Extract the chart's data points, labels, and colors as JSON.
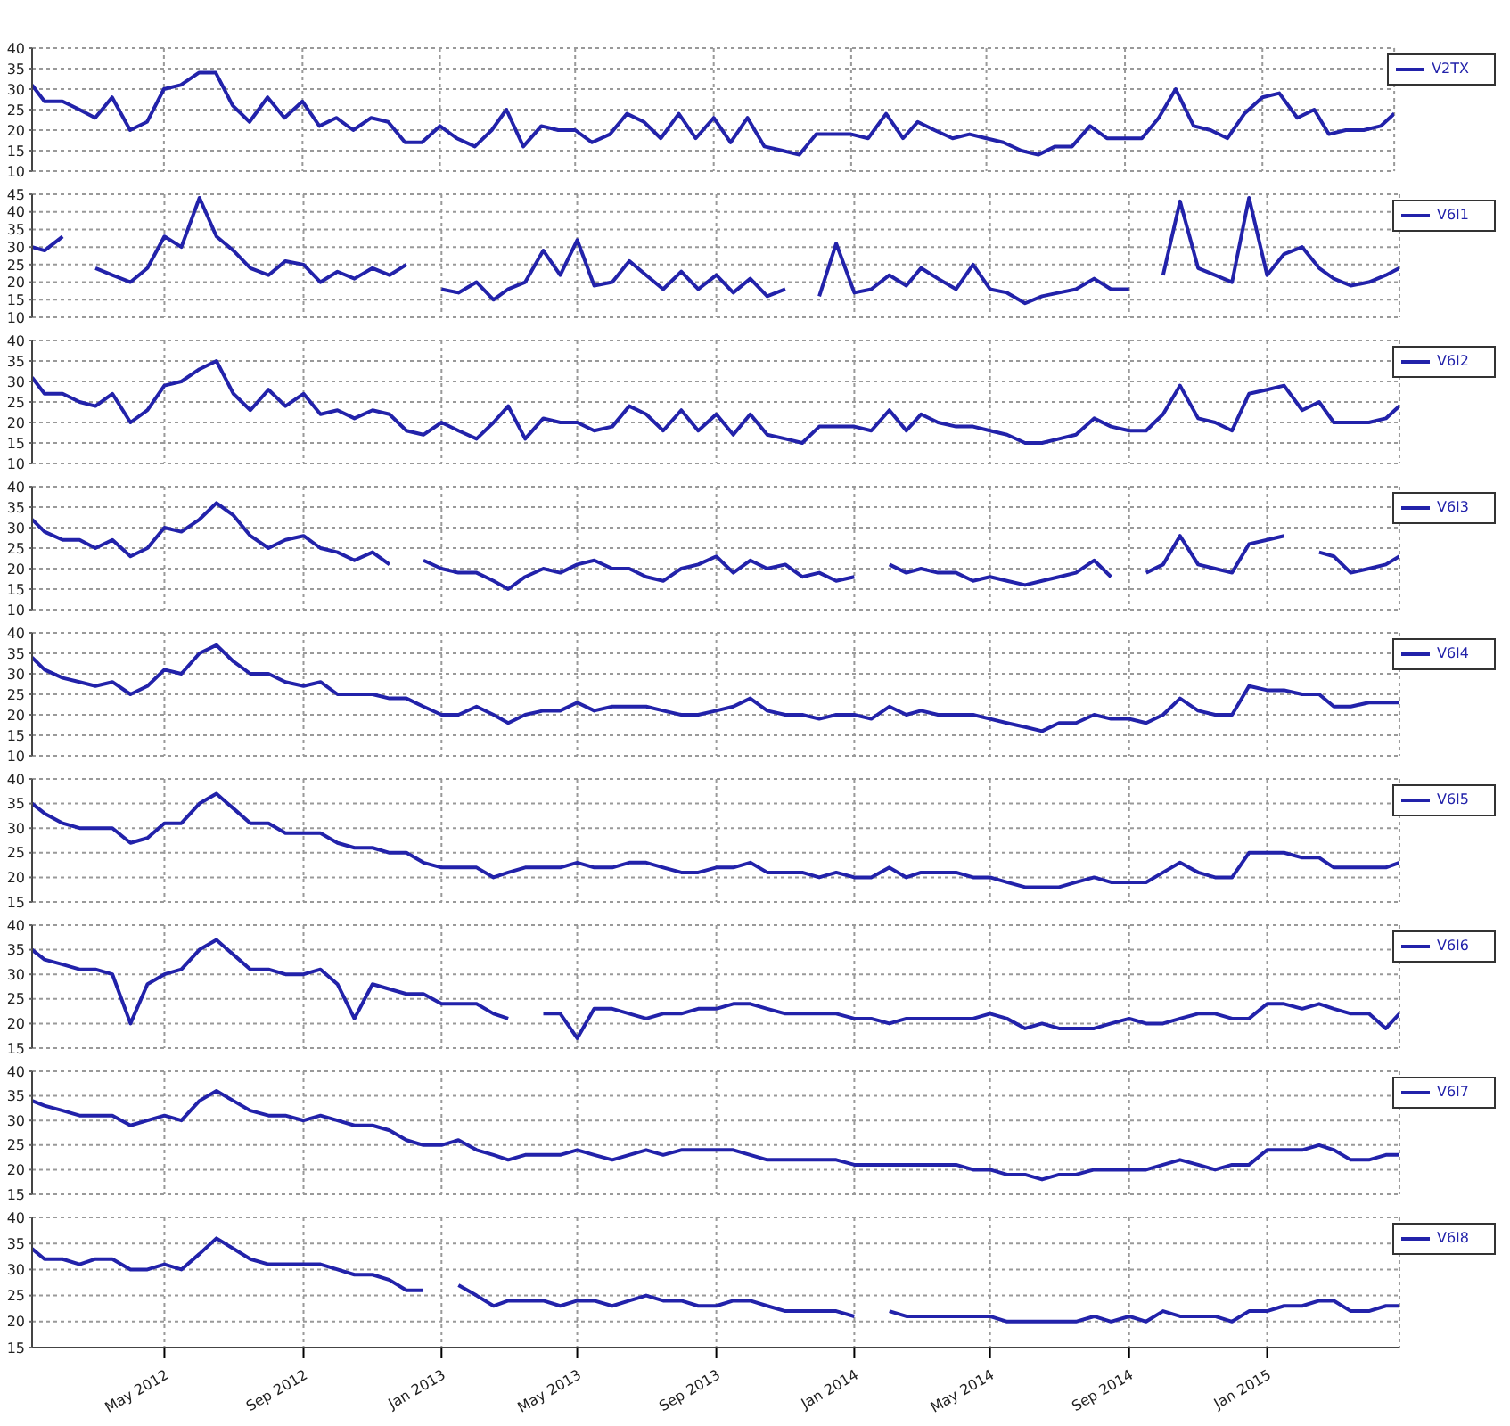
{
  "chart_data": [
    {
      "type": "line",
      "legend": "top right",
      "grid": true,
      "tick_labels": "y",
      "xlim": [
        "2012-01-05",
        "2015-04-28"
      ],
      "xticks": [
        {
          "value": "2012-05-01",
          "label": null
        },
        {
          "value": "2012-09-01",
          "label": null
        },
        {
          "value": "2013-01-01",
          "label": null
        },
        {
          "value": "2013-05-01",
          "label": null
        },
        {
          "value": "2013-09-01",
          "label": null
        },
        {
          "value": "2014-01-01",
          "label": null
        },
        {
          "value": "2014-05-01",
          "label": null
        },
        {
          "value": "2014-09-01",
          "label": null
        },
        {
          "value": "2015-01-01",
          "label": null
        }
      ],
      "ylim": [
        10,
        40
      ],
      "yticks": [
        10,
        15,
        20,
        25,
        30,
        35,
        40
      ],
      "x": [
        "2012-01-05",
        "2012-01-16",
        "2012-02-01",
        "2012-02-16",
        "2012-03-01",
        "2012-03-16",
        "2012-04-01",
        "2012-04-16",
        "2012-05-01",
        "2012-05-16",
        "2012-06-01",
        "2012-06-16",
        "2012-07-01",
        "2012-07-16",
        "2012-08-01",
        "2012-08-16",
        "2012-09-01",
        "2012-09-16",
        "2012-10-01",
        "2012-10-16",
        "2012-11-01",
        "2012-11-16",
        "2012-12-01",
        "2012-12-16",
        "2013-01-01",
        "2013-01-16",
        "2013-02-01",
        "2013-02-16",
        "2013-03-01",
        "2013-03-16",
        "2013-04-01",
        "2013-04-16",
        "2013-05-01",
        "2013-05-16",
        "2013-06-01",
        "2013-06-16",
        "2013-07-01",
        "2013-07-16",
        "2013-08-01",
        "2013-08-16",
        "2013-09-01",
        "2013-09-16",
        "2013-10-01",
        "2013-10-16",
        "2013-11-01",
        "2013-11-16",
        "2013-12-01",
        "2013-12-16",
        "2014-01-01",
        "2014-01-16",
        "2014-02-01",
        "2014-02-16",
        "2014-03-01",
        "2014-03-16",
        "2014-04-01",
        "2014-04-16",
        "2014-05-01",
        "2014-05-16",
        "2014-06-01",
        "2014-06-16",
        "2014-07-01",
        "2014-07-16",
        "2014-08-01",
        "2014-08-16",
        "2014-09-01",
        "2014-09-16",
        "2014-10-01",
        "2014-10-16",
        "2014-11-01",
        "2014-11-16",
        "2014-12-01",
        "2014-12-16",
        "2015-01-01",
        "2015-01-16",
        "2015-02-01",
        "2015-02-16",
        "2015-03-01",
        "2015-03-16",
        "2015-04-01",
        "2015-04-16",
        "2015-04-28"
      ],
      "series": [
        {
          "name": "V2TX",
          "color": "#2222aa",
          "values": [
            31,
            27,
            27,
            25,
            23,
            28,
            20,
            22,
            30,
            31,
            34,
            34,
            26,
            22,
            28,
            23,
            27,
            21,
            23,
            20,
            23,
            22,
            17,
            17,
            21,
            18,
            16,
            20,
            25,
            16,
            21,
            20,
            20,
            17,
            19,
            24,
            22,
            18,
            24,
            18,
            23,
            17,
            23,
            16,
            15,
            14,
            19,
            19,
            19,
            18,
            24,
            18,
            22,
            20,
            18,
            19,
            18,
            17,
            15,
            14,
            16,
            16,
            21,
            18,
            18,
            18,
            23,
            30,
            21,
            20,
            18,
            24,
            28,
            29,
            23,
            25,
            19,
            20,
            20,
            21,
            24
          ]
        }
      ]
    },
    {
      "type": "line",
      "legend": "top right",
      "grid": true,
      "tick_labels": "y",
      "xlim": [
        "2012-01-05",
        "2015-04-28"
      ],
      "xticks": [
        {
          "value": "2012-05-01",
          "label": null
        },
        {
          "value": "2012-09-01",
          "label": null
        },
        {
          "value": "2013-01-01",
          "label": null
        },
        {
          "value": "2013-05-01",
          "label": null
        },
        {
          "value": "2013-09-01",
          "label": null
        },
        {
          "value": "2014-01-01",
          "label": null
        },
        {
          "value": "2014-05-01",
          "label": null
        },
        {
          "value": "2014-09-01",
          "label": null
        },
        {
          "value": "2015-01-01",
          "label": null
        }
      ],
      "ylim": [
        10,
        45
      ],
      "yticks": [
        10,
        15,
        20,
        25,
        30,
        35,
        40,
        45
      ],
      "x": [
        "2012-01-05",
        "2012-01-16",
        "2012-02-01",
        "2012-02-16",
        "2012-03-01",
        "2012-03-16",
        "2012-04-01",
        "2012-04-16",
        "2012-05-01",
        "2012-05-16",
        "2012-06-01",
        "2012-06-16",
        "2012-07-01",
        "2012-07-16",
        "2012-08-01",
        "2012-08-16",
        "2012-09-01",
        "2012-09-16",
        "2012-10-01",
        "2012-10-16",
        "2012-11-01",
        "2012-11-16",
        "2012-12-01",
        "2012-12-16",
        "2013-01-01",
        "2013-01-16",
        "2013-02-01",
        "2013-02-16",
        "2013-03-01",
        "2013-03-16",
        "2013-04-01",
        "2013-04-16",
        "2013-05-01",
        "2013-05-16",
        "2013-06-01",
        "2013-06-16",
        "2013-07-01",
        "2013-07-16",
        "2013-08-01",
        "2013-08-16",
        "2013-09-01",
        "2013-09-16",
        "2013-10-01",
        "2013-10-16",
        "2013-11-01",
        "2013-11-16",
        "2013-12-01",
        "2013-12-16",
        "2014-01-01",
        "2014-01-16",
        "2014-02-01",
        "2014-02-16",
        "2014-03-01",
        "2014-03-16",
        "2014-04-01",
        "2014-04-16",
        "2014-05-01",
        "2014-05-16",
        "2014-06-01",
        "2014-06-16",
        "2014-07-01",
        "2014-07-16",
        "2014-08-01",
        "2014-08-16",
        "2014-09-01",
        "2014-09-16",
        "2014-10-01",
        "2014-10-16",
        "2014-11-01",
        "2014-11-16",
        "2014-12-01",
        "2014-12-16",
        "2015-01-01",
        "2015-01-16",
        "2015-02-01",
        "2015-02-16",
        "2015-03-01",
        "2015-03-16",
        "2015-04-01",
        "2015-04-16",
        "2015-04-28"
      ],
      "series": [
        {
          "name": "V6I1",
          "color": "#2222aa",
          "values": [
            30,
            29,
            33,
            null,
            24,
            22,
            20,
            24,
            33,
            30,
            44,
            33,
            29,
            24,
            22,
            26,
            25,
            20,
            23,
            21,
            24,
            22,
            25,
            null,
            18,
            17,
            20,
            15,
            18,
            20,
            29,
            22,
            32,
            19,
            20,
            26,
            22,
            18,
            23,
            18,
            22,
            17,
            21,
            16,
            18,
            null,
            16,
            31,
            17,
            18,
            22,
            19,
            24,
            21,
            18,
            25,
            18,
            17,
            14,
            16,
            17,
            18,
            21,
            18,
            18,
            null,
            22,
            43,
            24,
            22,
            20,
            44,
            22,
            28,
            30,
            24,
            21,
            19,
            20,
            22,
            24
          ]
        }
      ]
    },
    {
      "type": "line",
      "legend": "top right",
      "grid": true,
      "tick_labels": "y",
      "xlim": [
        "2012-01-05",
        "2015-04-28"
      ],
      "xticks": [
        {
          "value": "2012-05-01",
          "label": null
        },
        {
          "value": "2012-09-01",
          "label": null
        },
        {
          "value": "2013-01-01",
          "label": null
        },
        {
          "value": "2013-05-01",
          "label": null
        },
        {
          "value": "2013-09-01",
          "label": null
        },
        {
          "value": "2014-01-01",
          "label": null
        },
        {
          "value": "2014-05-01",
          "label": null
        },
        {
          "value": "2014-09-01",
          "label": null
        },
        {
          "value": "2015-01-01",
          "label": null
        }
      ],
      "ylim": [
        10,
        40
      ],
      "yticks": [
        10,
        15,
        20,
        25,
        30,
        35,
        40
      ],
      "x": [
        "2012-01-05",
        "2012-01-16",
        "2012-02-01",
        "2012-02-16",
        "2012-03-01",
        "2012-03-16",
        "2012-04-01",
        "2012-04-16",
        "2012-05-01",
        "2012-05-16",
        "2012-06-01",
        "2012-06-16",
        "2012-07-01",
        "2012-07-16",
        "2012-08-01",
        "2012-08-16",
        "2012-09-01",
        "2012-09-16",
        "2012-10-01",
        "2012-10-16",
        "2012-11-01",
        "2012-11-16",
        "2012-12-01",
        "2012-12-16",
        "2013-01-01",
        "2013-01-16",
        "2013-02-01",
        "2013-02-16",
        "2013-03-01",
        "2013-03-16",
        "2013-04-01",
        "2013-04-16",
        "2013-05-01",
        "2013-05-16",
        "2013-06-01",
        "2013-06-16",
        "2013-07-01",
        "2013-07-16",
        "2013-08-01",
        "2013-08-16",
        "2013-09-01",
        "2013-09-16",
        "2013-10-01",
        "2013-10-16",
        "2013-11-01",
        "2013-11-16",
        "2013-12-01",
        "2013-12-16",
        "2014-01-01",
        "2014-01-16",
        "2014-02-01",
        "2014-02-16",
        "2014-03-01",
        "2014-03-16",
        "2014-04-01",
        "2014-04-16",
        "2014-05-01",
        "2014-05-16",
        "2014-06-01",
        "2014-06-16",
        "2014-07-01",
        "2014-07-16",
        "2014-08-01",
        "2014-08-16",
        "2014-09-01",
        "2014-09-16",
        "2014-10-01",
        "2014-10-16",
        "2014-11-01",
        "2014-11-16",
        "2014-12-01",
        "2014-12-16",
        "2015-01-01",
        "2015-01-16",
        "2015-02-01",
        "2015-02-16",
        "2015-03-01",
        "2015-03-16",
        "2015-04-01",
        "2015-04-16",
        "2015-04-28"
      ],
      "series": [
        {
          "name": "V6I2",
          "color": "#2222aa",
          "values": [
            31,
            27,
            27,
            25,
            24,
            27,
            20,
            23,
            29,
            30,
            33,
            35,
            27,
            23,
            28,
            24,
            27,
            22,
            23,
            21,
            23,
            22,
            18,
            17,
            20,
            18,
            16,
            20,
            24,
            16,
            21,
            20,
            20,
            18,
            19,
            24,
            22,
            18,
            23,
            18,
            22,
            17,
            22,
            17,
            16,
            15,
            19,
            19,
            19,
            18,
            23,
            18,
            22,
            20,
            19,
            19,
            18,
            17,
            15,
            15,
            16,
            17,
            21,
            19,
            18,
            18,
            22,
            29,
            21,
            20,
            18,
            27,
            28,
            29,
            23,
            25,
            20,
            20,
            20,
            21,
            24
          ]
        }
      ]
    },
    {
      "type": "line",
      "legend": "top right",
      "grid": true,
      "tick_labels": "y",
      "xlim": [
        "2012-01-05",
        "2015-04-28"
      ],
      "xticks": [
        {
          "value": "2012-05-01",
          "label": null
        },
        {
          "value": "2012-09-01",
          "label": null
        },
        {
          "value": "2013-01-01",
          "label": null
        },
        {
          "value": "2013-05-01",
          "label": null
        },
        {
          "value": "2013-09-01",
          "label": null
        },
        {
          "value": "2014-01-01",
          "label": null
        },
        {
          "value": "2014-05-01",
          "label": null
        },
        {
          "value": "2014-09-01",
          "label": null
        },
        {
          "value": "2015-01-01",
          "label": null
        }
      ],
      "ylim": [
        10,
        40
      ],
      "yticks": [
        10,
        15,
        20,
        25,
        30,
        35,
        40
      ],
      "x": [
        "2012-01-05",
        "2012-01-16",
        "2012-02-01",
        "2012-02-16",
        "2012-03-01",
        "2012-03-16",
        "2012-04-01",
        "2012-04-16",
        "2012-05-01",
        "2012-05-16",
        "2012-06-01",
        "2012-06-16",
        "2012-07-01",
        "2012-07-16",
        "2012-08-01",
        "2012-08-16",
        "2012-09-01",
        "2012-09-16",
        "2012-10-01",
        "2012-10-16",
        "2012-11-01",
        "2012-11-16",
        "2012-12-01",
        "2012-12-16",
        "2013-01-01",
        "2013-01-16",
        "2013-02-01",
        "2013-02-16",
        "2013-03-01",
        "2013-03-16",
        "2013-04-01",
        "2013-04-16",
        "2013-05-01",
        "2013-05-16",
        "2013-06-01",
        "2013-06-16",
        "2013-07-01",
        "2013-07-16",
        "2013-08-01",
        "2013-08-16",
        "2013-09-01",
        "2013-09-16",
        "2013-10-01",
        "2013-10-16",
        "2013-11-01",
        "2013-11-16",
        "2013-12-01",
        "2013-12-16",
        "2014-01-01",
        "2014-01-16",
        "2014-02-01",
        "2014-02-16",
        "2014-03-01",
        "2014-03-16",
        "2014-04-01",
        "2014-04-16",
        "2014-05-01",
        "2014-05-16",
        "2014-06-01",
        "2014-06-16",
        "2014-07-01",
        "2014-07-16",
        "2014-08-01",
        "2014-08-16",
        "2014-09-01",
        "2014-09-16",
        "2014-10-01",
        "2014-10-16",
        "2014-11-01",
        "2014-11-16",
        "2014-12-01",
        "2014-12-16",
        "2015-01-01",
        "2015-01-16",
        "2015-02-01",
        "2015-02-16",
        "2015-03-01",
        "2015-03-16",
        "2015-04-01",
        "2015-04-16",
        "2015-04-28"
      ],
      "series": [
        {
          "name": "V6I3",
          "color": "#2222aa",
          "values": [
            32,
            29,
            27,
            27,
            25,
            27,
            23,
            25,
            30,
            29,
            32,
            36,
            33,
            28,
            25,
            27,
            28,
            25,
            24,
            22,
            24,
            21,
            null,
            22,
            20,
            19,
            19,
            17,
            15,
            18,
            20,
            19,
            21,
            22,
            20,
            20,
            18,
            17,
            20,
            21,
            23,
            19,
            22,
            20,
            21,
            18,
            19,
            17,
            18,
            null,
            21,
            19,
            20,
            19,
            19,
            17,
            18,
            17,
            16,
            17,
            18,
            19,
            22,
            18,
            null,
            19,
            21,
            28,
            21,
            20,
            19,
            26,
            27,
            28,
            null,
            24,
            23,
            19,
            20,
            21,
            23
          ]
        }
      ]
    },
    {
      "type": "line",
      "legend": "top right",
      "grid": true,
      "tick_labels": "y",
      "xlim": [
        "2012-01-05",
        "2015-04-28"
      ],
      "xticks": [
        {
          "value": "2012-05-01",
          "label": null
        },
        {
          "value": "2012-09-01",
          "label": null
        },
        {
          "value": "2013-01-01",
          "label": null
        },
        {
          "value": "2013-05-01",
          "label": null
        },
        {
          "value": "2013-09-01",
          "label": null
        },
        {
          "value": "2014-01-01",
          "label": null
        },
        {
          "value": "2014-05-01",
          "label": null
        },
        {
          "value": "2014-09-01",
          "label": null
        },
        {
          "value": "2015-01-01",
          "label": null
        }
      ],
      "ylim": [
        10,
        40
      ],
      "yticks": [
        10,
        15,
        20,
        25,
        30,
        35,
        40
      ],
      "x": [
        "2012-01-05",
        "2012-01-16",
        "2012-02-01",
        "2012-02-16",
        "2012-03-01",
        "2012-03-16",
        "2012-04-01",
        "2012-04-16",
        "2012-05-01",
        "2012-05-16",
        "2012-06-01",
        "2012-06-16",
        "2012-07-01",
        "2012-07-16",
        "2012-08-01",
        "2012-08-16",
        "2012-09-01",
        "2012-09-16",
        "2012-10-01",
        "2012-10-16",
        "2012-11-01",
        "2012-11-16",
        "2012-12-01",
        "2012-12-16",
        "2013-01-01",
        "2013-01-16",
        "2013-02-01",
        "2013-02-16",
        "2013-03-01",
        "2013-03-16",
        "2013-04-01",
        "2013-04-16",
        "2013-05-01",
        "2013-05-16",
        "2013-06-01",
        "2013-06-16",
        "2013-07-01",
        "2013-07-16",
        "2013-08-01",
        "2013-08-16",
        "2013-09-01",
        "2013-09-16",
        "2013-10-01",
        "2013-10-16",
        "2013-11-01",
        "2013-11-16",
        "2013-12-01",
        "2013-12-16",
        "2014-01-01",
        "2014-01-16",
        "2014-02-01",
        "2014-02-16",
        "2014-03-01",
        "2014-03-16",
        "2014-04-01",
        "2014-04-16",
        "2014-05-01",
        "2014-05-16",
        "2014-06-01",
        "2014-06-16",
        "2014-07-01",
        "2014-07-16",
        "2014-08-01",
        "2014-08-16",
        "2014-09-01",
        "2014-09-16",
        "2014-10-01",
        "2014-10-16",
        "2014-11-01",
        "2014-11-16",
        "2014-12-01",
        "2014-12-16",
        "2015-01-01",
        "2015-01-16",
        "2015-02-01",
        "2015-02-16",
        "2015-03-01",
        "2015-03-16",
        "2015-04-01",
        "2015-04-16",
        "2015-04-28"
      ],
      "series": [
        {
          "name": "V6I4",
          "color": "#2222aa",
          "values": [
            34,
            31,
            29,
            28,
            27,
            28,
            25,
            27,
            31,
            30,
            35,
            37,
            33,
            30,
            30,
            28,
            27,
            28,
            25,
            25,
            25,
            24,
            24,
            22,
            20,
            20,
            22,
            20,
            18,
            20,
            21,
            21,
            23,
            21,
            22,
            22,
            22,
            21,
            20,
            20,
            21,
            22,
            24,
            21,
            20,
            20,
            19,
            20,
            20,
            19,
            22,
            20,
            21,
            20,
            20,
            20,
            19,
            18,
            17,
            16,
            18,
            18,
            20,
            19,
            19,
            18,
            20,
            24,
            21,
            20,
            20,
            27,
            26,
            26,
            25,
            25,
            22,
            22,
            23,
            23,
            23
          ]
        }
      ]
    },
    {
      "type": "line",
      "legend": "top right",
      "grid": true,
      "tick_labels": "y",
      "xlim": [
        "2012-01-05",
        "2015-04-28"
      ],
      "xticks": [
        {
          "value": "2012-05-01",
          "label": null
        },
        {
          "value": "2012-09-01",
          "label": null
        },
        {
          "value": "2013-01-01",
          "label": null
        },
        {
          "value": "2013-05-01",
          "label": null
        },
        {
          "value": "2013-09-01",
          "label": null
        },
        {
          "value": "2014-01-01",
          "label": null
        },
        {
          "value": "2014-05-01",
          "label": null
        },
        {
          "value": "2014-09-01",
          "label": null
        },
        {
          "value": "2015-01-01",
          "label": null
        }
      ],
      "ylim": [
        15,
        40
      ],
      "yticks": [
        15,
        20,
        25,
        30,
        35,
        40
      ],
      "x": [
        "2012-01-05",
        "2012-01-16",
        "2012-02-01",
        "2012-02-16",
        "2012-03-01",
        "2012-03-16",
        "2012-04-01",
        "2012-04-16",
        "2012-05-01",
        "2012-05-16",
        "2012-06-01",
        "2012-06-16",
        "2012-07-01",
        "2012-07-16",
        "2012-08-01",
        "2012-08-16",
        "2012-09-01",
        "2012-09-16",
        "2012-10-01",
        "2012-10-16",
        "2012-11-01",
        "2012-11-16",
        "2012-12-01",
        "2012-12-16",
        "2013-01-01",
        "2013-01-16",
        "2013-02-01",
        "2013-02-16",
        "2013-03-01",
        "2013-03-16",
        "2013-04-01",
        "2013-04-16",
        "2013-05-01",
        "2013-05-16",
        "2013-06-01",
        "2013-06-16",
        "2013-07-01",
        "2013-07-16",
        "2013-08-01",
        "2013-08-16",
        "2013-09-01",
        "2013-09-16",
        "2013-10-01",
        "2013-10-16",
        "2013-11-01",
        "2013-11-16",
        "2013-12-01",
        "2013-12-16",
        "2014-01-01",
        "2014-01-16",
        "2014-02-01",
        "2014-02-16",
        "2014-03-01",
        "2014-03-16",
        "2014-04-01",
        "2014-04-16",
        "2014-05-01",
        "2014-05-16",
        "2014-06-01",
        "2014-06-16",
        "2014-07-01",
        "2014-07-16",
        "2014-08-01",
        "2014-08-16",
        "2014-09-01",
        "2014-09-16",
        "2014-10-01",
        "2014-10-16",
        "2014-11-01",
        "2014-11-16",
        "2014-12-01",
        "2014-12-16",
        "2015-01-01",
        "2015-01-16",
        "2015-02-01",
        "2015-02-16",
        "2015-03-01",
        "2015-03-16",
        "2015-04-01",
        "2015-04-16",
        "2015-04-28"
      ],
      "series": [
        {
          "name": "V6I5",
          "color": "#2222aa",
          "values": [
            35,
            33,
            31,
            30,
            30,
            30,
            27,
            28,
            31,
            31,
            35,
            37,
            34,
            31,
            31,
            29,
            29,
            29,
            27,
            26,
            26,
            25,
            25,
            23,
            22,
            22,
            22,
            20,
            21,
            22,
            22,
            22,
            23,
            22,
            22,
            23,
            23,
            22,
            21,
            21,
            22,
            22,
            23,
            21,
            21,
            21,
            20,
            21,
            20,
            20,
            22,
            20,
            21,
            21,
            21,
            20,
            20,
            19,
            18,
            18,
            18,
            19,
            20,
            19,
            19,
            19,
            21,
            23,
            21,
            20,
            20,
            25,
            25,
            25,
            24,
            24,
            22,
            22,
            22,
            22,
            23
          ]
        }
      ]
    },
    {
      "type": "line",
      "legend": "top right",
      "grid": true,
      "tick_labels": "y",
      "xlim": [
        "2012-01-05",
        "2015-04-28"
      ],
      "xticks": [
        {
          "value": "2012-05-01",
          "label": null
        },
        {
          "value": "2012-09-01",
          "label": null
        },
        {
          "value": "2013-01-01",
          "label": null
        },
        {
          "value": "2013-05-01",
          "label": null
        },
        {
          "value": "2013-09-01",
          "label": null
        },
        {
          "value": "2014-01-01",
          "label": null
        },
        {
          "value": "2014-05-01",
          "label": null
        },
        {
          "value": "2014-09-01",
          "label": null
        },
        {
          "value": "2015-01-01",
          "label": null
        }
      ],
      "ylim": [
        15,
        40
      ],
      "yticks": [
        15,
        20,
        25,
        30,
        35,
        40
      ],
      "x": [
        "2012-01-05",
        "2012-01-16",
        "2012-02-01",
        "2012-02-16",
        "2012-03-01",
        "2012-03-16",
        "2012-04-01",
        "2012-04-16",
        "2012-05-01",
        "2012-05-16",
        "2012-06-01",
        "2012-06-16",
        "2012-07-01",
        "2012-07-16",
        "2012-08-01",
        "2012-08-16",
        "2012-09-01",
        "2012-09-16",
        "2012-10-01",
        "2012-10-16",
        "2012-11-01",
        "2012-11-16",
        "2012-12-01",
        "2012-12-16",
        "2013-01-01",
        "2013-01-16",
        "2013-02-01",
        "2013-02-16",
        "2013-03-01",
        "2013-03-16",
        "2013-04-01",
        "2013-04-16",
        "2013-05-01",
        "2013-05-16",
        "2013-06-01",
        "2013-06-16",
        "2013-07-01",
        "2013-07-16",
        "2013-08-01",
        "2013-08-16",
        "2013-09-01",
        "2013-09-16",
        "2013-10-01",
        "2013-10-16",
        "2013-11-01",
        "2013-11-16",
        "2013-12-01",
        "2013-12-16",
        "2014-01-01",
        "2014-01-16",
        "2014-02-01",
        "2014-02-16",
        "2014-03-01",
        "2014-03-16",
        "2014-04-01",
        "2014-04-16",
        "2014-05-01",
        "2014-05-16",
        "2014-06-01",
        "2014-06-16",
        "2014-07-01",
        "2014-07-16",
        "2014-08-01",
        "2014-08-16",
        "2014-09-01",
        "2014-09-16",
        "2014-10-01",
        "2014-10-16",
        "2014-11-01",
        "2014-11-16",
        "2014-12-01",
        "2014-12-16",
        "2015-01-01",
        "2015-01-16",
        "2015-02-01",
        "2015-02-16",
        "2015-03-01",
        "2015-03-16",
        "2015-04-01",
        "2015-04-16",
        "2015-04-28"
      ],
      "series": [
        {
          "name": "V6I6",
          "color": "#2222aa",
          "values": [
            35,
            33,
            32,
            31,
            31,
            30,
            20,
            28,
            30,
            31,
            35,
            37,
            34,
            31,
            31,
            30,
            30,
            31,
            28,
            21,
            28,
            27,
            26,
            26,
            24,
            24,
            24,
            22,
            21,
            null,
            22,
            22,
            17,
            23,
            23,
            22,
            21,
            22,
            22,
            23,
            23,
            24,
            24,
            23,
            22,
            22,
            22,
            22,
            21,
            21,
            20,
            21,
            21,
            21,
            21,
            21,
            22,
            21,
            19,
            20,
            19,
            19,
            19,
            20,
            21,
            20,
            20,
            21,
            22,
            22,
            21,
            21,
            24,
            24,
            23,
            24,
            23,
            22,
            22,
            19,
            22
          ]
        }
      ]
    },
    {
      "type": "line",
      "legend": "top right",
      "grid": true,
      "tick_labels": "y",
      "xlim": [
        "2012-01-05",
        "2015-04-28"
      ],
      "xticks": [
        {
          "value": "2012-05-01",
          "label": null
        },
        {
          "value": "2012-09-01",
          "label": null
        },
        {
          "value": "2013-01-01",
          "label": null
        },
        {
          "value": "2013-05-01",
          "label": null
        },
        {
          "value": "2013-09-01",
          "label": null
        },
        {
          "value": "2014-01-01",
          "label": null
        },
        {
          "value": "2014-05-01",
          "label": null
        },
        {
          "value": "2014-09-01",
          "label": null
        },
        {
          "value": "2015-01-01",
          "label": null
        }
      ],
      "ylim": [
        15,
        40
      ],
      "yticks": [
        15,
        20,
        25,
        30,
        35,
        40
      ],
      "x": [
        "2012-01-05",
        "2012-01-16",
        "2012-02-01",
        "2012-02-16",
        "2012-03-01",
        "2012-03-16",
        "2012-04-01",
        "2012-04-16",
        "2012-05-01",
        "2012-05-16",
        "2012-06-01",
        "2012-06-16",
        "2012-07-01",
        "2012-07-16",
        "2012-08-01",
        "2012-08-16",
        "2012-09-01",
        "2012-09-16",
        "2012-10-01",
        "2012-10-16",
        "2012-11-01",
        "2012-11-16",
        "2012-12-01",
        "2012-12-16",
        "2013-01-01",
        "2013-01-16",
        "2013-02-01",
        "2013-02-16",
        "2013-03-01",
        "2013-03-16",
        "2013-04-01",
        "2013-04-16",
        "2013-05-01",
        "2013-05-16",
        "2013-06-01",
        "2013-06-16",
        "2013-07-01",
        "2013-07-16",
        "2013-08-01",
        "2013-08-16",
        "2013-09-01",
        "2013-09-16",
        "2013-10-01",
        "2013-10-16",
        "2013-11-01",
        "2013-11-16",
        "2013-12-01",
        "2013-12-16",
        "2014-01-01",
        "2014-01-16",
        "2014-02-01",
        "2014-02-16",
        "2014-03-01",
        "2014-03-16",
        "2014-04-01",
        "2014-04-16",
        "2014-05-01",
        "2014-05-16",
        "2014-06-01",
        "2014-06-16",
        "2014-07-01",
        "2014-07-16",
        "2014-08-01",
        "2014-08-16",
        "2014-09-01",
        "2014-09-16",
        "2014-10-01",
        "2014-10-16",
        "2014-11-01",
        "2014-11-16",
        "2014-12-01",
        "2014-12-16",
        "2015-01-01",
        "2015-01-16",
        "2015-02-01",
        "2015-02-16",
        "2015-03-01",
        "2015-03-16",
        "2015-04-01",
        "2015-04-16",
        "2015-04-28"
      ],
      "series": [
        {
          "name": "V6I7",
          "color": "#2222aa",
          "values": [
            34,
            33,
            32,
            31,
            31,
            31,
            29,
            30,
            31,
            30,
            34,
            36,
            34,
            32,
            31,
            31,
            30,
            31,
            30,
            29,
            29,
            28,
            26,
            25,
            25,
            26,
            24,
            23,
            22,
            23,
            23,
            23,
            24,
            23,
            22,
            23,
            24,
            23,
            24,
            24,
            24,
            24,
            23,
            22,
            22,
            22,
            22,
            22,
            21,
            21,
            21,
            21,
            21,
            21,
            21,
            20,
            20,
            19,
            19,
            18,
            19,
            19,
            20,
            20,
            20,
            20,
            21,
            22,
            21,
            20,
            21,
            21,
            24,
            24,
            24,
            25,
            24,
            22,
            22,
            23,
            23
          ]
        }
      ]
    },
    {
      "type": "line",
      "legend": "top right",
      "grid": true,
      "xlim": [
        "2012-01-05",
        "2015-04-28"
      ],
      "xticks": [
        {
          "value": "2012-05-01",
          "label": "May 2012"
        },
        {
          "value": "2012-09-01",
          "label": "Sep 2012"
        },
        {
          "value": "2013-01-01",
          "label": "Jan 2013"
        },
        {
          "value": "2013-05-01",
          "label": "May 2013"
        },
        {
          "value": "2013-09-01",
          "label": "Sep 2013"
        },
        {
          "value": "2014-01-01",
          "label": "Jan 2014"
        },
        {
          "value": "2014-05-01",
          "label": "May 2014"
        },
        {
          "value": "2014-09-01",
          "label": "Sep 2014"
        },
        {
          "value": "2015-01-01",
          "label": "Jan 2015"
        }
      ],
      "ylim": [
        15,
        40
      ],
      "yticks": [
        15,
        20,
        25,
        30,
        35,
        40
      ],
      "x": [
        "2012-01-05",
        "2012-01-16",
        "2012-02-01",
        "2012-02-16",
        "2012-03-01",
        "2012-03-16",
        "2012-04-01",
        "2012-04-16",
        "2012-05-01",
        "2012-05-16",
        "2012-06-01",
        "2012-06-16",
        "2012-07-01",
        "2012-07-16",
        "2012-08-01",
        "2012-08-16",
        "2012-09-01",
        "2012-09-16",
        "2012-10-01",
        "2012-10-16",
        "2012-11-01",
        "2012-11-16",
        "2012-12-01",
        "2012-12-16",
        "2013-01-01",
        "2013-01-16",
        "2013-02-01",
        "2013-02-16",
        "2013-03-01",
        "2013-03-16",
        "2013-04-01",
        "2013-04-16",
        "2013-05-01",
        "2013-05-16",
        "2013-06-01",
        "2013-06-16",
        "2013-07-01",
        "2013-07-16",
        "2013-08-01",
        "2013-08-16",
        "2013-09-01",
        "2013-09-16",
        "2013-10-01",
        "2013-10-16",
        "2013-11-01",
        "2013-11-16",
        "2013-12-01",
        "2013-12-16",
        "2014-01-01",
        "2014-01-16",
        "2014-02-01",
        "2014-02-16",
        "2014-03-01",
        "2014-03-16",
        "2014-04-01",
        "2014-04-16",
        "2014-05-01",
        "2014-05-16",
        "2014-06-01",
        "2014-06-16",
        "2014-07-01",
        "2014-07-16",
        "2014-08-01",
        "2014-08-16",
        "2014-09-01",
        "2014-09-16",
        "2014-10-01",
        "2014-10-16",
        "2014-11-01",
        "2014-11-16",
        "2014-12-01",
        "2014-12-16",
        "2015-01-01",
        "2015-01-16",
        "2015-02-01",
        "2015-02-16",
        "2015-03-01",
        "2015-03-16",
        "2015-04-01",
        "2015-04-16",
        "2015-04-28"
      ],
      "series": [
        {
          "name": "V6I8",
          "color": "#2222aa",
          "values": [
            34,
            32,
            32,
            31,
            32,
            32,
            30,
            30,
            31,
            30,
            33,
            36,
            34,
            32,
            31,
            31,
            31,
            31,
            30,
            29,
            29,
            28,
            26,
            26,
            null,
            27,
            25,
            23,
            24,
            24,
            24,
            23,
            24,
            24,
            23,
            24,
            25,
            24,
            24,
            23,
            23,
            24,
            24,
            23,
            22,
            22,
            22,
            22,
            21,
            null,
            22,
            21,
            21,
            21,
            21,
            21,
            21,
            20,
            20,
            20,
            20,
            20,
            21,
            20,
            21,
            20,
            22,
            21,
            21,
            21,
            20,
            22,
            22,
            23,
            23,
            24,
            24,
            22,
            22,
            23,
            23
          ]
        }
      ]
    }
  ]
}
